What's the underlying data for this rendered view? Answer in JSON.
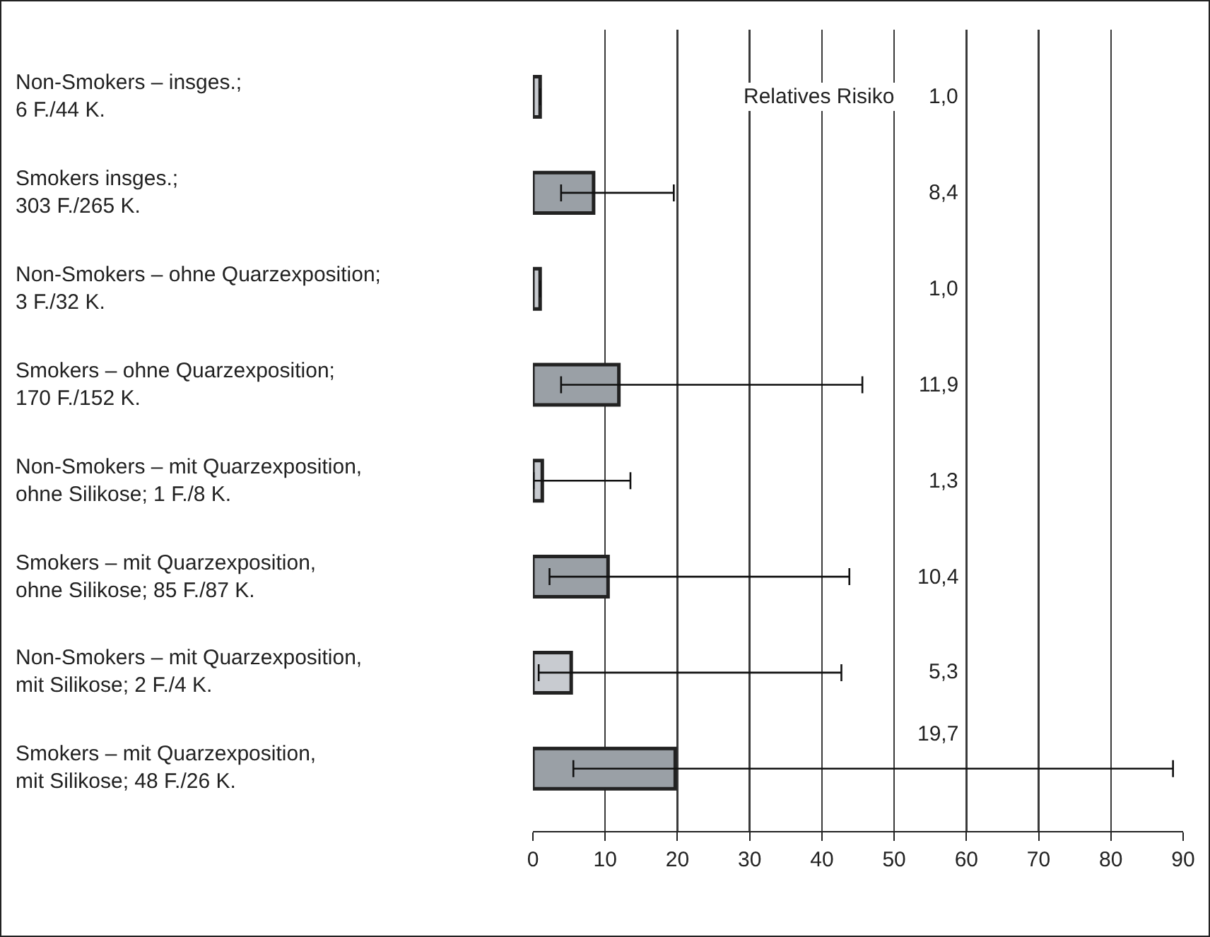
{
  "chart_data": {
    "type": "bar",
    "orientation": "horizontal",
    "categories": [
      "Non-Smokers – insges.;\n6 F./44 K.",
      "Smokers insges.;\n303 F./265 K.",
      "Non-Smokers – ohne Quarzexposition;\n3 F./32 K.",
      "Smokers – ohne Quarzexposition;\n170 F./152 K.",
      "Non-Smokers – mit Quarzexposition,\nohne Silikose; 1 F./8 K.",
      "Smokers – mit Quarzexposition,\nohne Silikose; 85 F./87 K.",
      "Non-Smokers – mit Quarzexposition,\nmit Silikose; 2 F./4 K.",
      "Smokers – mit Quarzexposition,\nmit Silikose; 48 F./26 K."
    ],
    "values": [
      1.0,
      8.4,
      1.0,
      11.9,
      1.3,
      10.4,
      5.3,
      19.7
    ],
    "value_labels": [
      "1,0",
      "8,4",
      "1,0",
      "11,9",
      "1,3",
      "10,4",
      "5,3",
      "19,7"
    ],
    "errors": [
      null,
      [
        3.9,
        19.5
      ],
      null,
      [
        3.9,
        45.6
      ],
      [
        0.1,
        13.5
      ],
      [
        2.3,
        43.8
      ],
      [
        0.8,
        42.7
      ],
      [
        5.6,
        88.6
      ]
    ],
    "colors": [
      "#c8cbd0",
      "#9aa0a6",
      "#c8cbd0",
      "#9aa0a6",
      "#c8cbd0",
      "#9aa0a6",
      "#c8cbd0",
      "#9aa0a6"
    ],
    "annotations": [
      "Relatives Risiko"
    ],
    "xlim": [
      0,
      90
    ],
    "xticks": [
      0,
      10,
      20,
      30,
      40,
      50,
      60,
      70,
      80,
      90
    ],
    "grid": "x",
    "legend": false
  }
}
